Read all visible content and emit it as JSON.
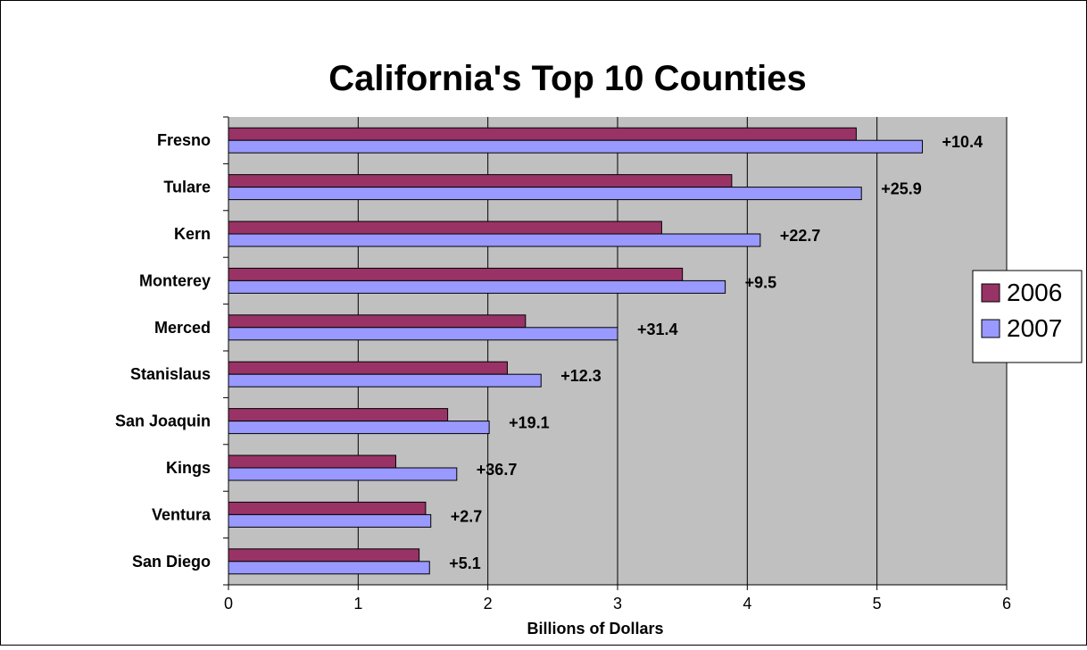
{
  "chart_data": {
    "type": "bar",
    "orientation": "horizontal",
    "title": "California's Top 10 Counties",
    "xlabel": "Billions of Dollars",
    "ylabel": "",
    "xlim": [
      0,
      6
    ],
    "x_ticks": [
      "0",
      "1",
      "2",
      "3",
      "4",
      "5",
      "6"
    ],
    "grid": "vertical",
    "legend_position": "right",
    "categories": [
      "Fresno",
      "Tulare",
      "Kern",
      "Monterey",
      "Merced",
      "Stanislaus",
      "San Joaquin",
      "Kings",
      "Ventura",
      "San Diego"
    ],
    "series": [
      {
        "name": "2006",
        "color": "#993366",
        "values": [
          4.84,
          3.88,
          3.34,
          3.5,
          2.29,
          2.15,
          1.69,
          1.29,
          1.52,
          1.47
        ]
      },
      {
        "name": "2007",
        "color": "#9999ff",
        "values": [
          5.35,
          4.88,
          4.1,
          3.83,
          3.0,
          2.41,
          2.01,
          1.76,
          1.56,
          1.55
        ]
      }
    ],
    "annotations": [
      "+10.4",
      "+25.9",
      "+22.7",
      "+9.5",
      "+31.4",
      "+12.3",
      "+19.1",
      "+36.7",
      "+2.7",
      "+5.1"
    ],
    "plot_background": "#c0c0c0"
  }
}
